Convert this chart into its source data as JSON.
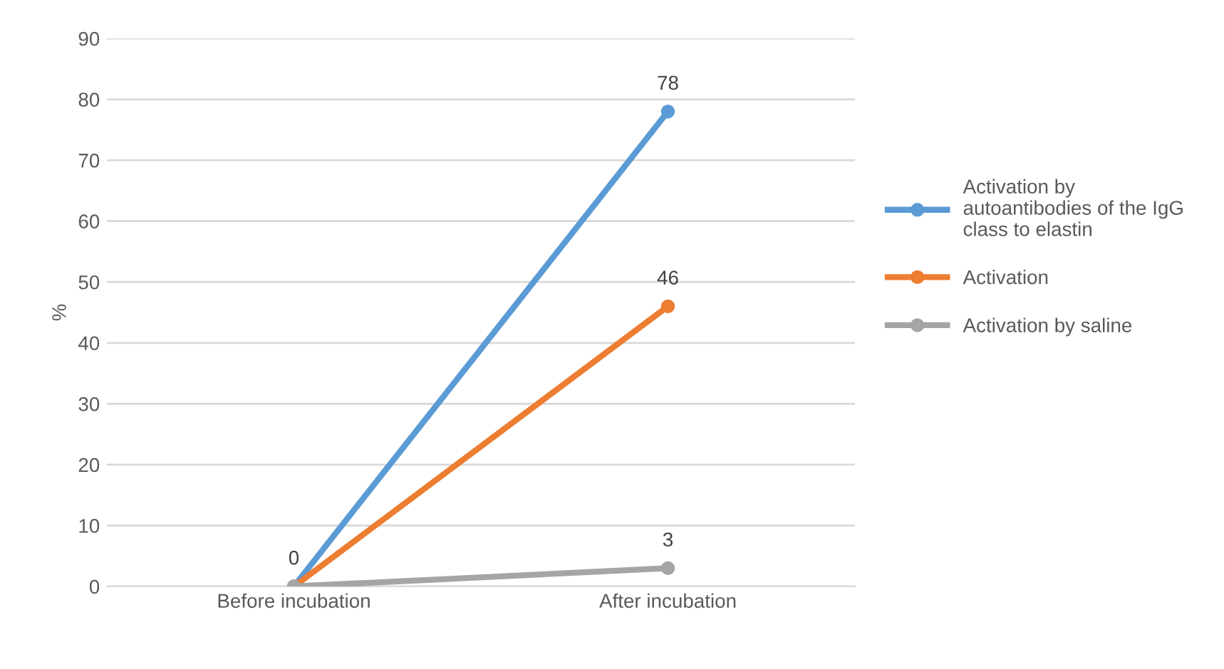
{
  "chart_data": {
    "type": "line",
    "ylabel": "%",
    "categories": [
      "Before incubation",
      "After incubation"
    ],
    "series": [
      {
        "name": "Activation by autoantibodies of the IgG class to elastin",
        "color": "#5b9bd5",
        "values": [
          0,
          78
        ],
        "value_labels": [
          null,
          "78"
        ]
      },
      {
        "name": "Activation",
        "color": "#ed7d31",
        "values": [
          0,
          46
        ],
        "value_labels": [
          null,
          "46"
        ]
      },
      {
        "name": "Activation by saline",
        "color": "#a5a5a5",
        "values": [
          0,
          3
        ],
        "value_labels": [
          "0",
          "3"
        ]
      }
    ],
    "ylim": [
      0,
      90
    ],
    "yticks": [
      0,
      10,
      20,
      30,
      40,
      50,
      60,
      70,
      80,
      90
    ],
    "grid": "y",
    "legend": "right",
    "marker": "circle",
    "line_style": "solid"
  }
}
